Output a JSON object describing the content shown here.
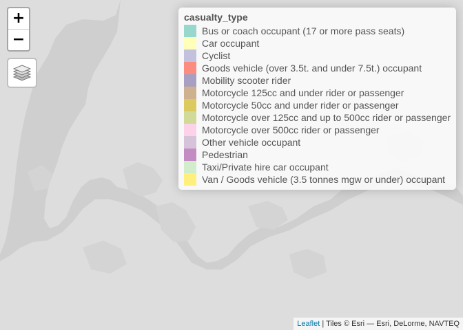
{
  "map": {
    "basemap": "esri-light-gray-canvas",
    "land_color": "#dddddd",
    "water_color": "#cfcfcf",
    "urban_color": "#d5d5d5"
  },
  "controls": {
    "zoom_in_label": "+",
    "zoom_out_label": "−",
    "layers_icon": "layers-icon"
  },
  "legend": {
    "title": "casualty_type",
    "items": [
      {
        "label": "Bus or coach occupant (17 or more pass seats)",
        "color": "#8dd3c7"
      },
      {
        "label": "Car occupant",
        "color": "#ffffb3"
      },
      {
        "label": "Cyclist",
        "color": "#bebada"
      },
      {
        "label": "Goods vehicle (over 3.5t. and under 7.5t.) occupant",
        "color": "#fb8072"
      },
      {
        "label": "Mobility scooter rider",
        "color": "#9e96bb"
      },
      {
        "label": "Motorcycle 125cc and under rider or passenger",
        "color": "#c9a882"
      },
      {
        "label": "Motorcycle 50cc and under rider or passenger",
        "color": "#d9c44e"
      },
      {
        "label": "Motorcycle over 125cc and up to 500cc rider or passenger",
        "color": "#ccd68e"
      },
      {
        "label": "Motorcycle over 500cc rider or passenger",
        "color": "#fccde5"
      },
      {
        "label": "Other vehicle occupant",
        "color": "#d2bdd6"
      },
      {
        "label": "Pedestrian",
        "color": "#bc80bd"
      },
      {
        "label": "Taxi/Private hire car occupant",
        "color": "#ccebc5"
      },
      {
        "label": "Van / Goods vehicle (3.5 tonnes mgw or under) occupant",
        "color": "#ffed6f"
      }
    ]
  },
  "attribution": {
    "link_text": "Leaflet",
    "separator": " | ",
    "tiles_text": "Tiles © Esri — Esri, DeLorme, NAVTEQ"
  }
}
